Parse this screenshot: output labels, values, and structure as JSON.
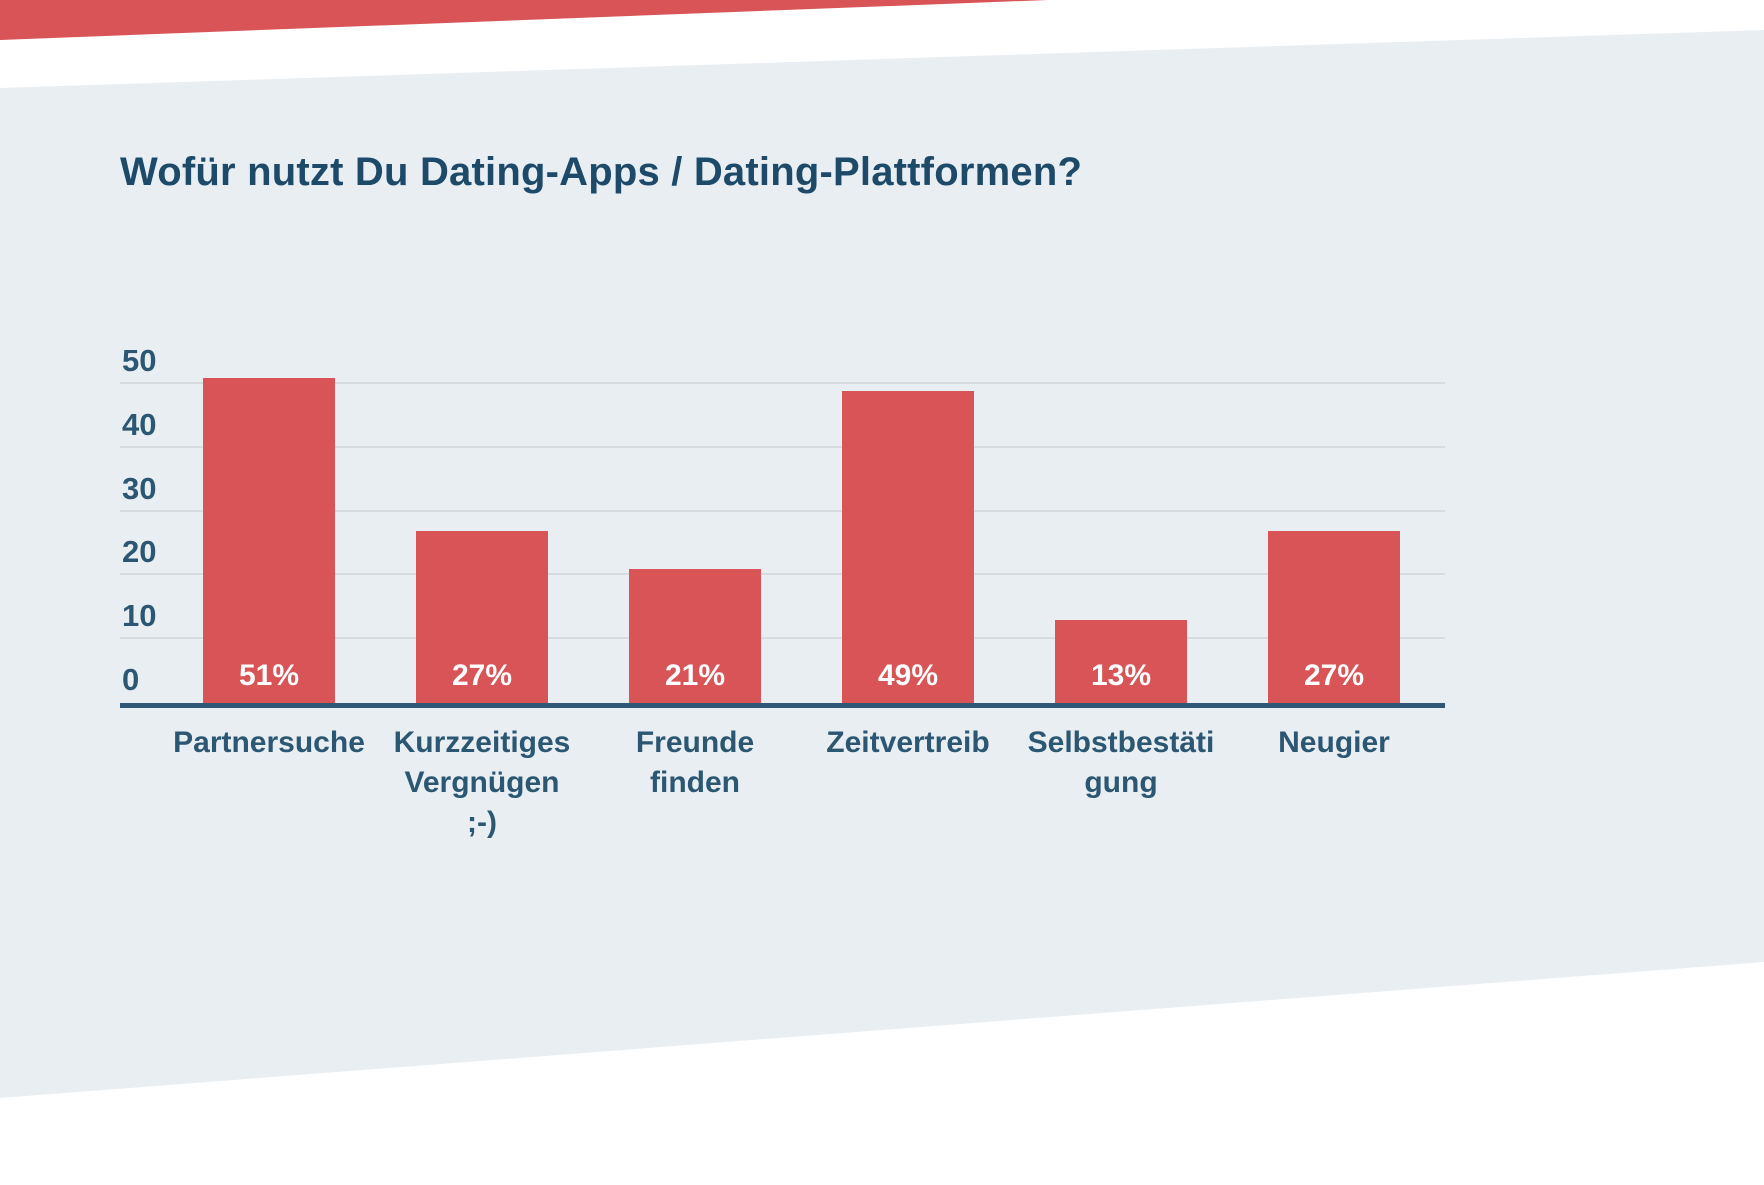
{
  "title": "Wofür nutzt Du Dating-Apps / Dating-Plattformen?",
  "chart_data": {
    "type": "bar",
    "title": "Wofür nutzt Du Dating-Apps / Dating-Plattformen?",
    "categories": [
      "Partnersuche",
      "Kurzzeitiges\nVergnügen\n;-)",
      "Freunde\nfinden",
      "Zeitvertreib",
      "Selbstbestäti\ngung",
      "Neugier"
    ],
    "values": [
      51,
      27,
      21,
      49,
      13,
      27
    ],
    "value_labels": [
      "51%",
      "27%",
      "21%",
      "49%",
      "13%",
      "27%"
    ],
    "y_ticks": [
      0,
      10,
      20,
      30,
      40,
      50
    ],
    "ylim": [
      0,
      53
    ],
    "xlabel": "",
    "ylabel": "",
    "grid": true,
    "legend": "none",
    "bar_color": "#d85456",
    "value_label_color": "#ffffff",
    "axis_color": "#2f5876",
    "gridline_color": "#d7dce1",
    "text_color": "#2b5772",
    "panel_background": "#e9eef3",
    "accent_color": "#d85456"
  }
}
